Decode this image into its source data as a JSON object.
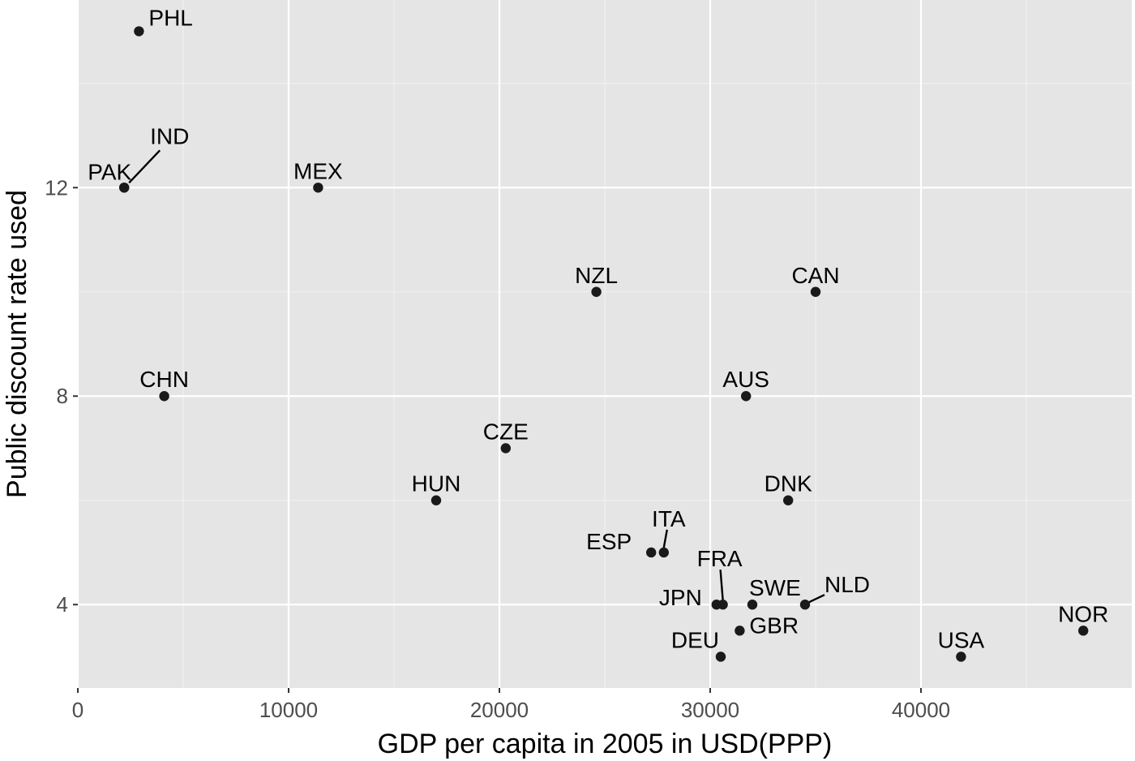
{
  "chart_data": {
    "type": "scatter",
    "xlabel": "GDP per capita in 2005 in USD(PPP)",
    "ylabel": "Public discount rate used",
    "xlim": [
      0,
      50000
    ],
    "ylim": [
      2.4,
      15.6
    ],
    "xticks": [
      0,
      10000,
      20000,
      30000,
      40000
    ],
    "xtick_labels": [
      "0",
      "10000",
      "20000",
      "30000",
      "40000"
    ],
    "yticks": [
      4,
      8,
      12
    ],
    "ytick_labels": [
      "4",
      "8",
      "12"
    ],
    "grid": true,
    "points": [
      {
        "label": "PHL",
        "x": 2900,
        "y": 15
      },
      {
        "label": "PAK",
        "x": 2200,
        "y": 12
      },
      {
        "label": "IND",
        "x": 2200,
        "y": 12
      },
      {
        "label": "MEX",
        "x": 11400,
        "y": 12
      },
      {
        "label": "NZL",
        "x": 24600,
        "y": 10
      },
      {
        "label": "CAN",
        "x": 35000,
        "y": 10
      },
      {
        "label": "CHN",
        "x": 4100,
        "y": 8
      },
      {
        "label": "AUS",
        "x": 31700,
        "y": 8
      },
      {
        "label": "CZE",
        "x": 20300,
        "y": 7
      },
      {
        "label": "HUN",
        "x": 17000,
        "y": 6
      },
      {
        "label": "DNK",
        "x": 33700,
        "y": 6
      },
      {
        "label": "ESP",
        "x": 27200,
        "y": 5
      },
      {
        "label": "ITA",
        "x": 27800,
        "y": 5
      },
      {
        "label": "FRA",
        "x": 30600,
        "y": 4
      },
      {
        "label": "JPN",
        "x": 30300,
        "y": 4
      },
      {
        "label": "SWE",
        "x": 32000,
        "y": 4
      },
      {
        "label": "NLD",
        "x": 34500,
        "y": 4
      },
      {
        "label": "GBR",
        "x": 31400,
        "y": 3.5
      },
      {
        "label": "DEU",
        "x": 30500,
        "y": 3
      },
      {
        "label": "USA",
        "x": 41900,
        "y": 3
      },
      {
        "label": "NOR",
        "x": 47700,
        "y": 3.5
      }
    ]
  }
}
